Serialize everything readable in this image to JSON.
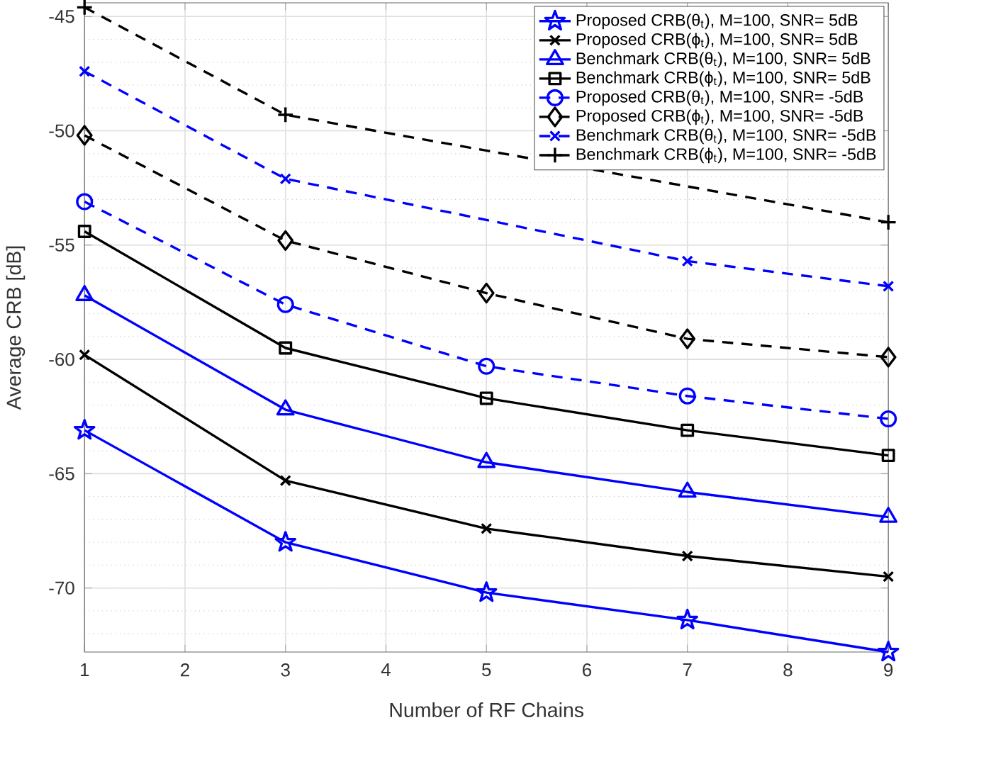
{
  "chart_data": {
    "type": "line",
    "xlabel": "Number of RF Chains",
    "ylabel": "Average CRB [dB]",
    "x": [
      1,
      3,
      5,
      7,
      9
    ],
    "xlim": [
      1,
      9
    ],
    "xticks": [
      1,
      2,
      3,
      4,
      5,
      6,
      7,
      8,
      9
    ],
    "ylim": [
      -72.8,
      -44.4
    ],
    "yticks": [
      -70,
      -65,
      -60,
      -55,
      -50,
      -45
    ],
    "grid": true,
    "legend": "top right",
    "series": [
      {
        "name": "Proposed CRB(θ$_{t}$), M=100, SNR= 5dB",
        "color": "#0000ff",
        "marker": "star",
        "line_style": "solid",
        "values": [
          -63.1,
          -68.0,
          -70.2,
          -71.4,
          -72.8
        ]
      },
      {
        "name": "Proposed CRB(ϕ$_{t}$), M=100, SNR= 5dB",
        "color": "#000000",
        "marker": "cross",
        "line_style": "solid",
        "values": [
          -59.8,
          -65.3,
          -67.4,
          -68.6,
          -69.5
        ]
      },
      {
        "name": "Benchmark CRB(θ$_{t}$), M=100, SNR= 5dB",
        "color": "#0000ff",
        "marker": "triangle",
        "line_style": "solid",
        "values": [
          -57.2,
          -62.2,
          -64.5,
          -65.8,
          -66.9
        ]
      },
      {
        "name": "Benchmark CRB(ϕ$_{t}$), M=100, SNR= 5dB",
        "color": "#000000",
        "marker": "square",
        "line_style": "solid",
        "values": [
          -54.4,
          -59.5,
          -61.7,
          -63.1,
          -64.2
        ]
      },
      {
        "name": "Proposed CRB(θ$_{t}$), M=100, SNR= -5dB",
        "color": "#0000ff",
        "marker": "circle",
        "line_style": "dashed",
        "values": [
          -53.1,
          -57.6,
          -60.3,
          -61.6,
          -62.6
        ]
      },
      {
        "name": "Proposed CRB(ϕ$_{t}$), M=100, SNR= -5dB",
        "color": "#000000",
        "marker": "diamond",
        "line_style": "dashed",
        "values": [
          -50.2,
          -54.8,
          -57.1,
          -59.1,
          -59.9
        ]
      },
      {
        "name": "Benchmark CRB(θ$_{t}$), M=100, SNR= -5dB",
        "color": "#0000ff",
        "marker": "cross",
        "line_style": "dashed",
        "values": [
          -47.4,
          -52.1,
          null,
          -55.7,
          -56.8
        ]
      },
      {
        "name": "Benchmark CRB(ϕ$_{t}$), M=100, SNR= -5dB",
        "color": "#000000",
        "marker": "plus",
        "line_style": "dashed",
        "values": [
          -44.6,
          -49.3,
          null,
          null,
          -54.0
        ]
      }
    ]
  }
}
